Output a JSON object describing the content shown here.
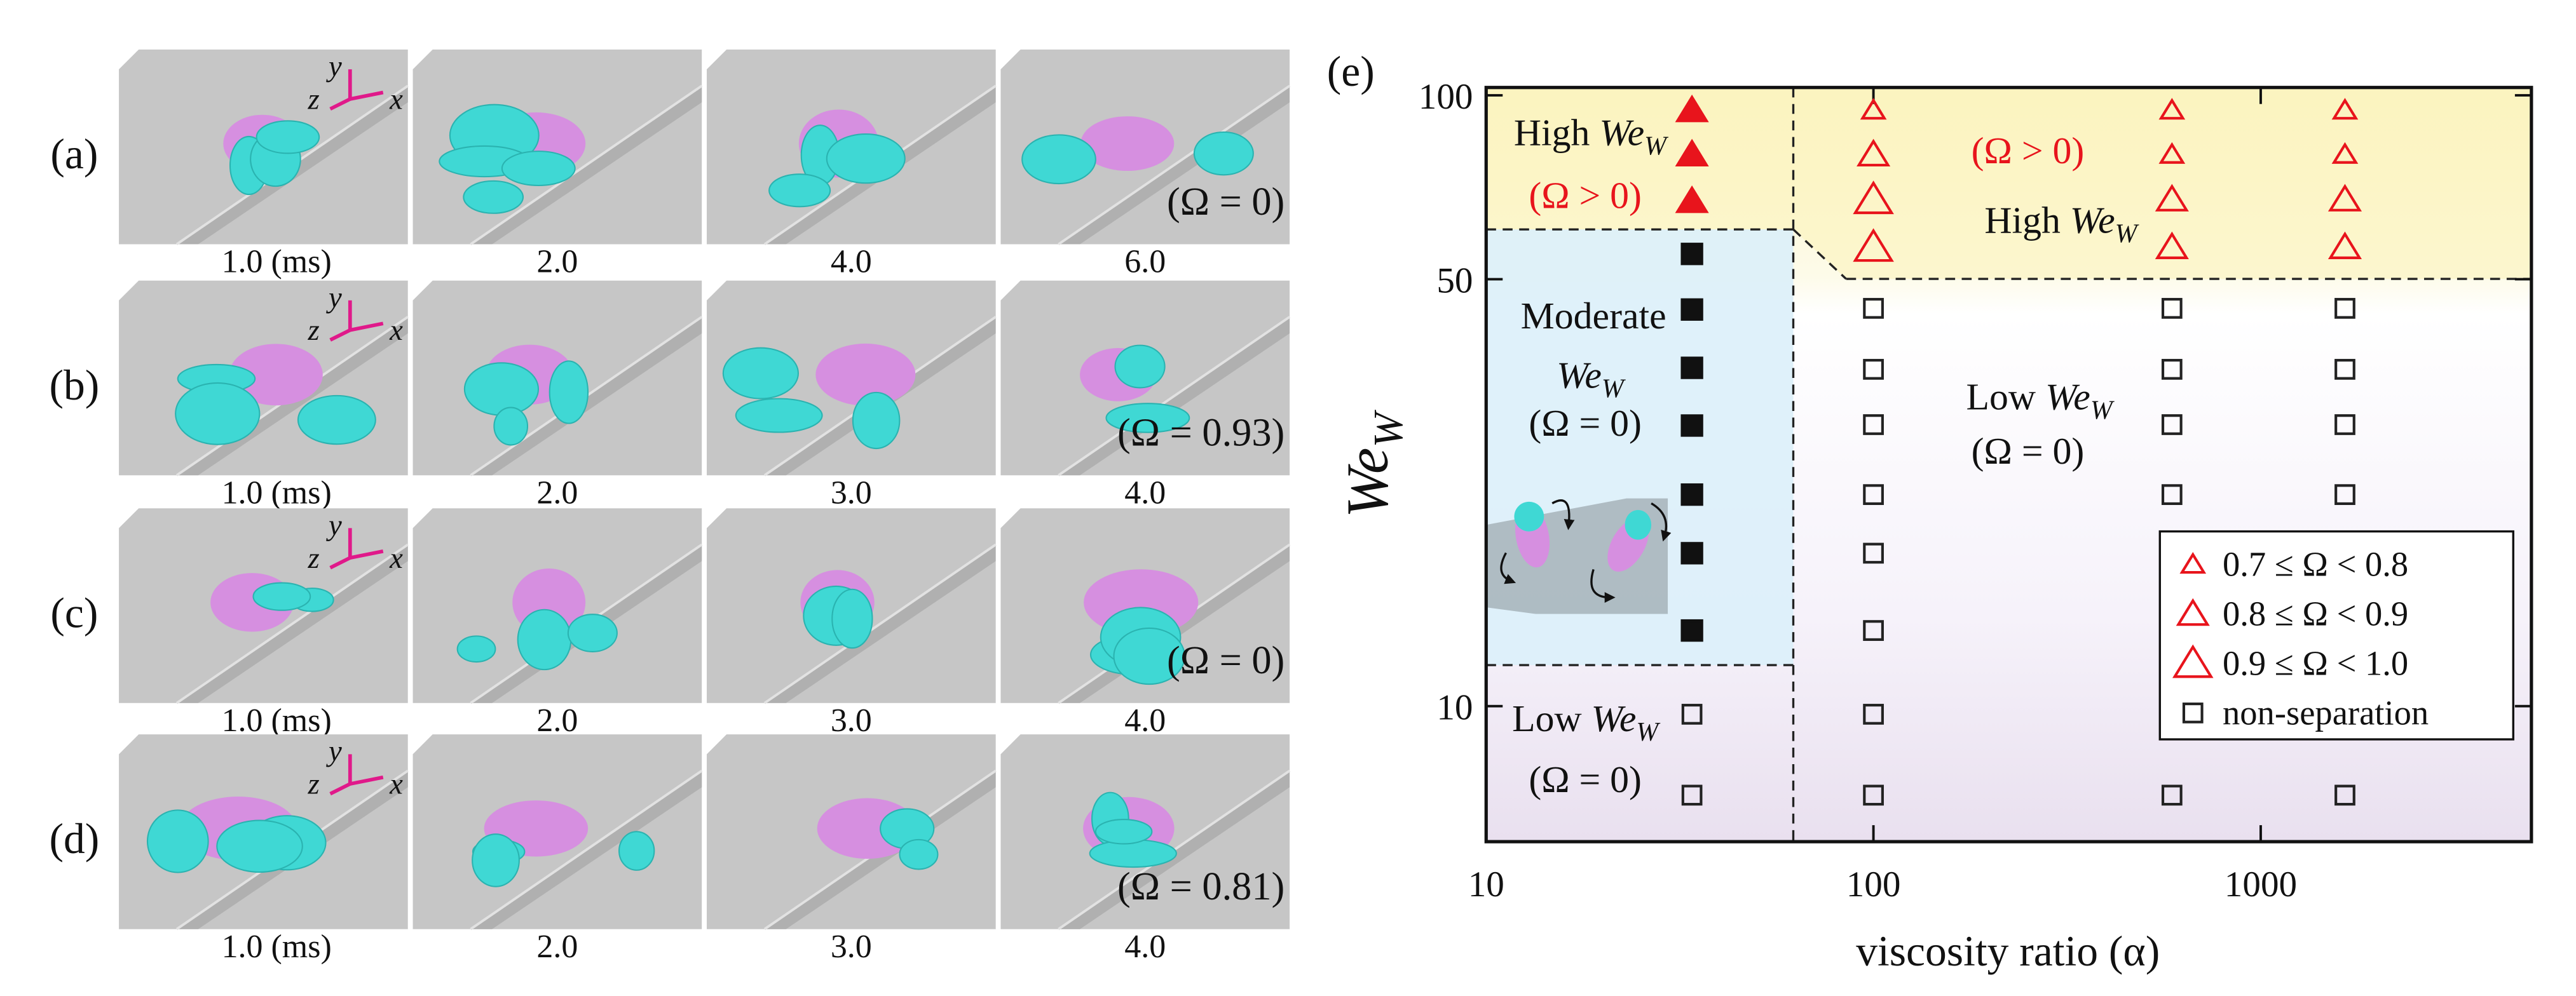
{
  "panels": [
    {
      "label": "(a)",
      "times": [
        "1.0 (ms)",
        "2.0",
        "4.0",
        "6.0"
      ],
      "omega": "(Ω = 0)"
    },
    {
      "label": "(b)",
      "times": [
        "1.0 (ms)",
        "2.0",
        "3.0",
        "4.0"
      ],
      "omega": "(Ω = 0.93)"
    },
    {
      "label": "(c)",
      "times": [
        "1.0 (ms)",
        "2.0",
        "3.0",
        "4.0"
      ],
      "omega": "(Ω = 0)"
    },
    {
      "label": "(d)",
      "times": [
        "1.0 (ms)",
        "2.0",
        "3.0",
        "4.0"
      ],
      "omega": "(Ω = 0.81)"
    }
  ],
  "triad_labels": [
    "y",
    "z",
    "x"
  ],
  "chart_data": {
    "type": "scatter",
    "panel_label": "(e)",
    "x_label": "viscosity ratio (α)",
    "y_label": [
      {
        "text": "We",
        "style": "italic"
      },
      {
        "text": "W",
        "style": "sub"
      }
    ],
    "xscale": "log",
    "yscale": "log",
    "xlim": [
      10,
      5000
    ],
    "ylim": [
      6,
      103
    ],
    "xticks": [
      10,
      100,
      1000
    ],
    "yticks": [
      10,
      50,
      100
    ],
    "legend": "lower right",
    "series": [
      {
        "marker": "triangle",
        "filled": true,
        "color": "#e8141c",
        "x": [
          34,
          34,
          34
        ],
        "values": [
          94.5,
          80,
          67.1
        ]
      },
      {
        "marker": "square",
        "filled": true,
        "color": "#111111",
        "x": [
          34,
          34,
          34,
          34,
          34,
          34,
          34
        ],
        "values": [
          55,
          44.6,
          35.8,
          28.8,
          22.2,
          17.8,
          13.3
        ]
      },
      {
        "name": "0.7 ≤ Ω < 0.8",
        "marker": "triangle",
        "filled": false,
        "color": "#e8141c",
        "x": [
          100,
          590,
          590,
          1650,
          1650
        ],
        "values": [
          94.5,
          94.5,
          80,
          94.5,
          80
        ]
      },
      {
        "name": "0.8 ≤ Ω < 0.9",
        "marker": "triangle",
        "filled": false,
        "color": "#e8141c",
        "x": [
          100,
          590,
          590,
          1650,
          1650
        ],
        "values": [
          80,
          67.5,
          56.4,
          67.5,
          56.4
        ]
      },
      {
        "name": "0.9 ≤ Ω < 1.0",
        "marker": "triangle",
        "filled": false,
        "color": "#e8141c",
        "x": [
          100,
          100
        ],
        "values": [
          67.5,
          56.4
        ]
      },
      {
        "name": "non-separation",
        "marker": "square",
        "filled": false,
        "color": "#222222",
        "x": [
          34,
          34,
          100,
          100,
          100,
          100,
          100,
          100,
          100,
          100,
          590,
          590,
          590,
          590,
          590,
          1650,
          1650,
          1650,
          1650,
          1650
        ],
        "values": [
          9.7,
          7.15,
          44.8,
          35.6,
          28.9,
          22.2,
          17.8,
          13.3,
          9.7,
          7.15,
          44.8,
          35.6,
          28.9,
          22.2,
          7.15,
          44.8,
          35.6,
          28.9,
          22.2,
          7.15
        ]
      }
    ],
    "annotations": [
      {
        "lines": [
          {
            "parts": [
              {
                "text": "High "
              },
              {
                "text": "We",
                "style": "italic"
              },
              {
                "text": "W",
                "style": "sub"
              }
            ]
          },
          {
            "parts": [
              {
                "text": "(Ω > 0)"
              }
            ],
            "color": "#e8141c"
          }
        ]
      },
      {
        "lines": [
          {
            "parts": [
              {
                "text": "(Ω > 0)"
              }
            ],
            "color": "#e8141c"
          },
          {
            "parts": [
              {
                "text": "High "
              },
              {
                "text": "We",
                "style": "italic"
              },
              {
                "text": "W",
                "style": "sub"
              }
            ]
          }
        ]
      },
      {
        "lines": [
          {
            "parts": [
              {
                "text": "Moderate"
              }
            ]
          },
          {
            "parts": [
              {
                "text": "We",
                "style": "italic"
              },
              {
                "text": "W",
                "style": "sub"
              }
            ]
          },
          {
            "parts": [
              {
                "text": "(Ω = 0)"
              }
            ]
          }
        ]
      },
      {
        "lines": [
          {
            "parts": [
              {
                "text": "Low "
              },
              {
                "text": "We",
                "style": "italic"
              },
              {
                "text": "W",
                "style": "sub"
              }
            ]
          },
          {
            "parts": [
              {
                "text": "(Ω = 0)"
              }
            ]
          }
        ]
      },
      {
        "lines": [
          {
            "parts": [
              {
                "text": "Low "
              },
              {
                "text": "We",
                "style": "italic"
              },
              {
                "text": "W",
                "style": "sub"
              }
            ]
          },
          {
            "parts": [
              {
                "text": "(Ω = 0)"
              }
            ]
          }
        ]
      }
    ]
  }
}
